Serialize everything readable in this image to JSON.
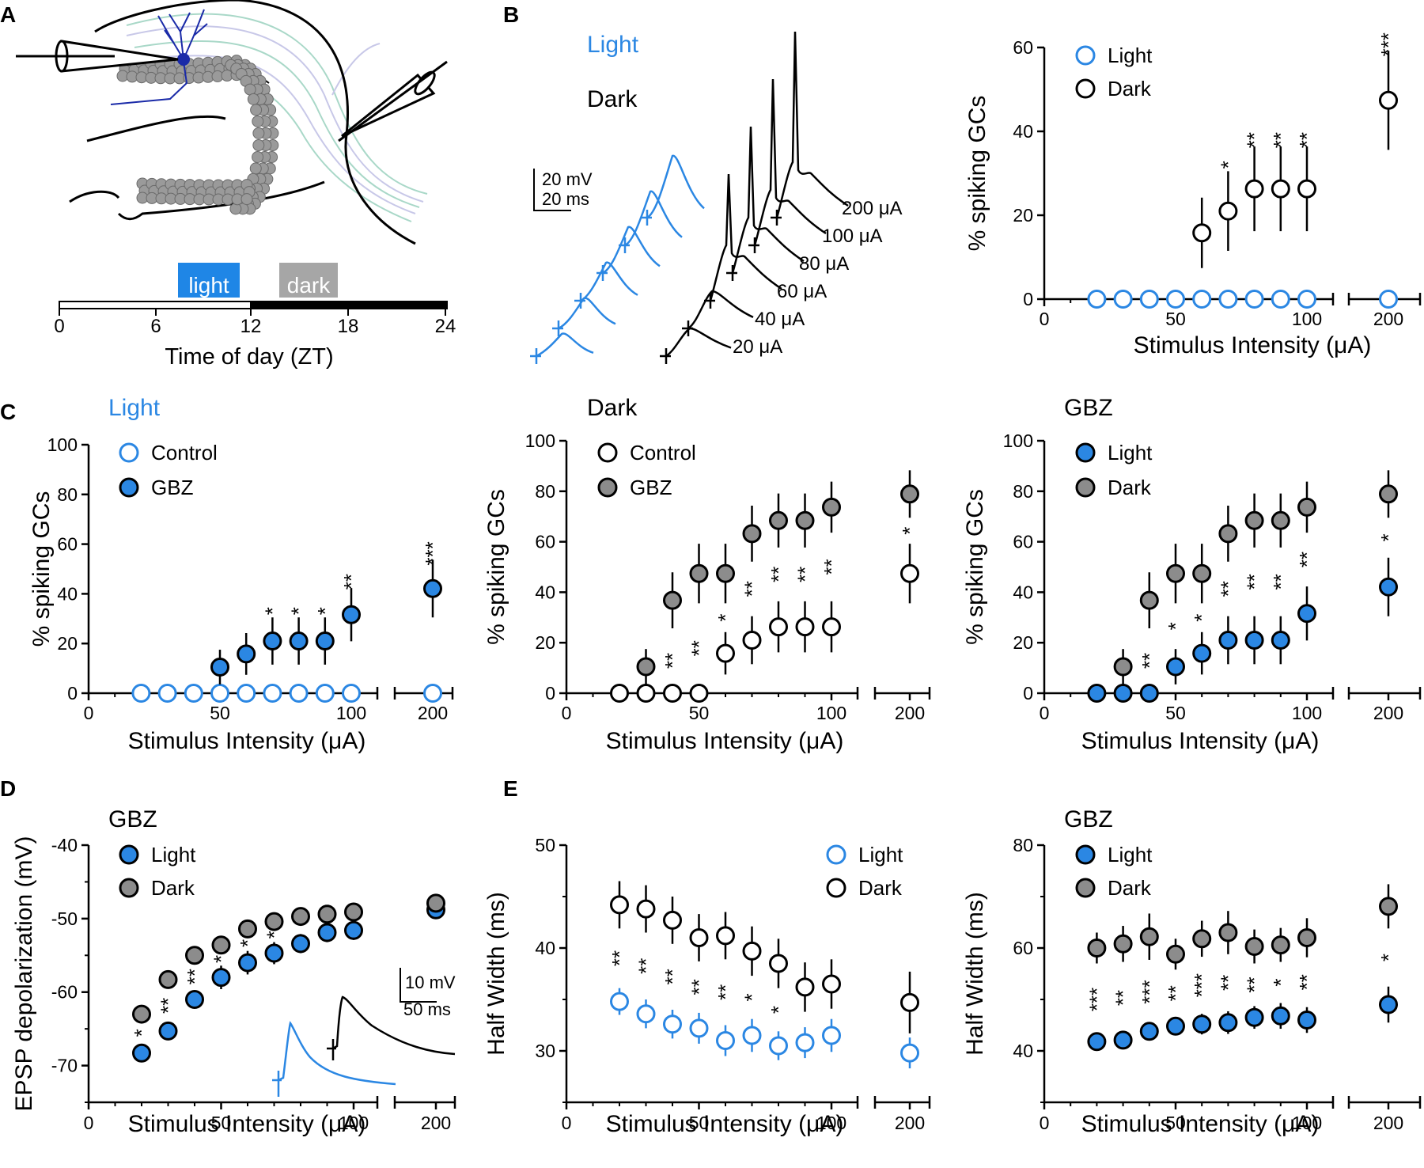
{
  "figure": {
    "panel_letters": [
      "A",
      "B",
      "C",
      "D",
      "E"
    ],
    "colors": {
      "light": "#2b87e3",
      "dark_fill": "#8c8c8c",
      "black": "#000000",
      "gray_label": "#a0a0a0"
    }
  },
  "panelA": {
    "timeline": {
      "light_label": "light",
      "dark_label": "dark",
      "ticks": [
        "0",
        "6",
        "12",
        "18",
        "24"
      ],
      "xlabel": "Time of day (ZT)"
    }
  },
  "panelB_traces": {
    "legend_light": "Light",
    "legend_dark": "Dark",
    "scale_v": "20 mV",
    "scale_t": "20 ms",
    "intensities": [
      "200 μA",
      "100 μA",
      "80 μA",
      "60 μA",
      "40 μA",
      "20 μA"
    ]
  },
  "chart_data": [
    {
      "id": "B",
      "type": "scatter",
      "title": "",
      "xlabel": "Stimulus Intensity (μA)",
      "ylabel": "% spiking GCs",
      "ylim": [
        0,
        60
      ],
      "yticks": [
        "0",
        "20",
        "40",
        "60"
      ],
      "xticks": [
        "0",
        "50",
        "100",
        "200"
      ],
      "series": [
        {
          "name": "Light",
          "style": "open-blue",
          "x": [
            20,
            30,
            40,
            50,
            60,
            70,
            80,
            90,
            100,
            200
          ],
          "y": [
            0,
            0,
            0,
            0,
            0,
            0,
            0,
            0,
            0,
            0
          ],
          "err": [
            0,
            0,
            0,
            0,
            0,
            0,
            0,
            0,
            0,
            0
          ]
        },
        {
          "name": "Dark",
          "style": "open-black",
          "x": [
            60,
            70,
            80,
            90,
            100,
            200
          ],
          "y": [
            15.8,
            21,
            26.3,
            26.3,
            26.3,
            47.4
          ],
          "err": [
            8.4,
            9.5,
            10.1,
            10.1,
            10.1,
            11.8
          ]
        }
      ],
      "annotations": [
        {
          "x": 70,
          "text": "*"
        },
        {
          "x": 80,
          "text": "**"
        },
        {
          "x": 90,
          "text": "**"
        },
        {
          "x": 100,
          "text": "**"
        },
        {
          "x": 200,
          "text": "***"
        }
      ]
    },
    {
      "id": "C1",
      "type": "scatter",
      "title": "Light",
      "xlabel": "Stimulus Intensity (μA)",
      "ylabel": "% spiking GCs",
      "ylim": [
        0,
        100
      ],
      "yticks": [
        "0",
        "20",
        "40",
        "60",
        "80",
        "100"
      ],
      "xticks": [
        "0",
        "50",
        "100",
        "200"
      ],
      "series": [
        {
          "name": "Control",
          "style": "open-blue",
          "x": [
            20,
            30,
            40,
            50,
            60,
            70,
            80,
            90,
            100,
            200
          ],
          "y": [
            0,
            0,
            0,
            0,
            0,
            0,
            0,
            0,
            0,
            0
          ],
          "err": [
            0,
            0,
            0,
            0,
            0,
            0,
            0,
            0,
            0,
            0
          ]
        },
        {
          "name": "GBZ",
          "style": "filled-blue",
          "x": [
            50,
            60,
            70,
            80,
            90,
            100,
            200
          ],
          "y": [
            10.5,
            15.8,
            21,
            21,
            21,
            31.6,
            42.1
          ],
          "err": [
            7,
            8.4,
            9.5,
            9.5,
            9.5,
            10.7,
            11.6
          ]
        }
      ],
      "annotations": [
        {
          "x": 70,
          "text": "*"
        },
        {
          "x": 80,
          "text": "*"
        },
        {
          "x": 90,
          "text": "*"
        },
        {
          "x": 100,
          "text": "**"
        },
        {
          "x": 200,
          "text": "***"
        }
      ]
    },
    {
      "id": "C2",
      "type": "scatter",
      "title": "Dark",
      "xlabel": "Stimulus Intensity (μA)",
      "ylabel": "% spiking GCs",
      "ylim": [
        0,
        100
      ],
      "yticks": [
        "0",
        "20",
        "40",
        "60",
        "80",
        "100"
      ],
      "xticks": [
        "0",
        "50",
        "100",
        "200"
      ],
      "series": [
        {
          "name": "Control",
          "style": "open-black",
          "x": [
            20,
            30,
            40,
            50,
            60,
            70,
            80,
            90,
            100,
            200
          ],
          "y": [
            0,
            0,
            0,
            0,
            15.8,
            21,
            26.3,
            26.3,
            26.3,
            47.4
          ],
          "err": [
            0,
            0,
            0,
            0,
            8.4,
            9.5,
            10.1,
            10.1,
            10.1,
            11.8
          ]
        },
        {
          "name": "GBZ",
          "style": "filled-gray",
          "x": [
            30,
            40,
            50,
            60,
            70,
            80,
            90,
            100,
            200
          ],
          "y": [
            10.5,
            36.8,
            47.4,
            47.4,
            63.2,
            68.4,
            68.4,
            73.7,
            78.9
          ],
          "err": [
            7,
            11.1,
            11.8,
            11.8,
            11.1,
            10.7,
            10.7,
            10.1,
            9.4
          ]
        }
      ],
      "annotations": [
        {
          "x": 40,
          "text": "**"
        },
        {
          "x": 50,
          "text": "**"
        },
        {
          "x": 60,
          "text": "*"
        },
        {
          "x": 70,
          "text": "**"
        },
        {
          "x": 80,
          "text": "**"
        },
        {
          "x": 90,
          "text": "**"
        },
        {
          "x": 100,
          "text": "**"
        },
        {
          "x": 200,
          "text": "*"
        }
      ]
    },
    {
      "id": "C3",
      "type": "scatter",
      "title": "GBZ",
      "xlabel": "Stimulus Intensity (μA)",
      "ylabel": "% spiking GCs",
      "ylim": [
        0,
        100
      ],
      "yticks": [
        "0",
        "20",
        "40",
        "60",
        "80",
        "100"
      ],
      "xticks": [
        "0",
        "50",
        "100",
        "200"
      ],
      "series": [
        {
          "name": "Light",
          "style": "filled-blue",
          "x": [
            20,
            30,
            40,
            50,
            60,
            70,
            80,
            90,
            100,
            200
          ],
          "y": [
            0,
            0,
            0,
            10.5,
            15.8,
            21,
            21,
            21,
            31.6,
            42.1
          ],
          "err": [
            0,
            0,
            0,
            7,
            8.4,
            9.5,
            9.5,
            9.5,
            10.7,
            11.6
          ]
        },
        {
          "name": "Dark",
          "style": "filled-gray",
          "x": [
            30,
            40,
            50,
            60,
            70,
            80,
            90,
            100,
            200
          ],
          "y": [
            10.5,
            36.8,
            47.4,
            47.4,
            63.2,
            68.4,
            68.4,
            73.7,
            78.9
          ],
          "err": [
            7,
            11.1,
            11.8,
            11.8,
            11.1,
            10.7,
            10.7,
            10.1,
            9.4
          ]
        }
      ],
      "annotations": [
        {
          "x": 40,
          "text": "**"
        },
        {
          "x": 50,
          "text": "*"
        },
        {
          "x": 60,
          "text": "*"
        },
        {
          "x": 70,
          "text": "**"
        },
        {
          "x": 80,
          "text": "**"
        },
        {
          "x": 90,
          "text": "**"
        },
        {
          "x": 100,
          "text": "**"
        },
        {
          "x": 200,
          "text": "*"
        }
      ]
    },
    {
      "id": "D",
      "type": "scatter",
      "title": "GBZ",
      "xlabel": "Stimulus Intensity (μA)",
      "ylabel": "EPSP depolarization (mV)",
      "ylim": [
        -75,
        -40
      ],
      "yticks": [
        "-70",
        "-60",
        "-50",
        "-40"
      ],
      "xticks": [
        "0",
        "50",
        "100",
        "200"
      ],
      "inset_scale_v": "10 mV",
      "inset_scale_t": "50 ms",
      "series": [
        {
          "name": "Light",
          "style": "filled-blue",
          "x": [
            20,
            30,
            40,
            50,
            60,
            70,
            80,
            90,
            100,
            200
          ],
          "y": [
            -68.3,
            -65.3,
            -61,
            -58,
            -56,
            -54.7,
            -53.4,
            -51.9,
            -51.6,
            -48.8
          ],
          "err": [
            0.9,
            0.9,
            1.1,
            1.6,
            1.6,
            1.5,
            1.3,
            1.3,
            1.3,
            1.2
          ]
        },
        {
          "name": "Dark",
          "style": "filled-gray",
          "x": [
            20,
            30,
            40,
            50,
            60,
            70,
            80,
            90,
            100,
            200
          ],
          "y": [
            -63,
            -58.3,
            -55,
            -53.6,
            -51.4,
            -50.4,
            -49.7,
            -49.4,
            -49.1,
            -47.9
          ],
          "err": [
            0.7,
            1,
            0.9,
            1,
            0.9,
            0.8,
            0.8,
            0.8,
            0.8,
            0.6
          ]
        }
      ],
      "annotations": [
        {
          "x": 20,
          "text": "*"
        },
        {
          "x": 30,
          "text": "**"
        },
        {
          "x": 40,
          "text": "**"
        },
        {
          "x": 50,
          "text": "*"
        },
        {
          "x": 60,
          "text": "*"
        },
        {
          "x": 70,
          "text": "*"
        }
      ]
    },
    {
      "id": "E1",
      "type": "scatter",
      "title": "",
      "xlabel": "Stimulus Intensity (μA)",
      "ylabel": "Half Width (ms)",
      "ylim": [
        25,
        50
      ],
      "yticks": [
        "30",
        "40",
        "50"
      ],
      "xticks": [
        "0",
        "50",
        "100",
        "200"
      ],
      "series": [
        {
          "name": "Light",
          "style": "open-blue",
          "x": [
            20,
            30,
            40,
            50,
            60,
            70,
            80,
            90,
            100,
            200
          ],
          "y": [
            34.8,
            33.6,
            32.6,
            32.2,
            31,
            31.5,
            30.5,
            30.8,
            31.5,
            29.8
          ],
          "err": [
            1.3,
            1.4,
            1.4,
            1.5,
            1.5,
            1.6,
            1.4,
            1.5,
            1.6,
            1.5
          ]
        },
        {
          "name": "Dark",
          "style": "open-black",
          "x": [
            20,
            30,
            40,
            50,
            60,
            70,
            80,
            90,
            100,
            200
          ],
          "y": [
            44.2,
            43.8,
            42.7,
            41,
            41.2,
            39.7,
            38.5,
            36.2,
            36.5,
            34.7
          ],
          "err": [
            2.3,
            2.3,
            2.3,
            2.3,
            2.3,
            2.4,
            2.4,
            2.4,
            2.4,
            3
          ]
        }
      ],
      "annotations": [
        {
          "x": 20,
          "text": "**"
        },
        {
          "x": 30,
          "text": "**"
        },
        {
          "x": 40,
          "text": "**"
        },
        {
          "x": 50,
          "text": "**"
        },
        {
          "x": 60,
          "text": "**"
        },
        {
          "x": 70,
          "text": "*"
        },
        {
          "x": 80,
          "text": "*"
        }
      ]
    },
    {
      "id": "E2",
      "type": "scatter",
      "title": "GBZ",
      "xlabel": "Stimulus Intensity (μA)",
      "ylabel": "Half Width (ms)",
      "ylim": [
        30,
        80
      ],
      "yticks": [
        "40",
        "60",
        "80"
      ],
      "xticks": [
        "0",
        "50",
        "100",
        "200"
      ],
      "series": [
        {
          "name": "Light",
          "style": "filled-blue",
          "x": [
            20,
            30,
            40,
            50,
            60,
            70,
            80,
            90,
            100,
            200
          ],
          "y": [
            41.8,
            42.1,
            43.8,
            44.8,
            45.2,
            45.5,
            46.5,
            46.8,
            46,
            49
          ],
          "err": [
            1.2,
            1.2,
            1.4,
            1.8,
            2,
            2.2,
            2.2,
            2.5,
            2.5,
            3.5
          ]
        },
        {
          "name": "Dark",
          "style": "filled-gray",
          "x": [
            20,
            30,
            40,
            50,
            60,
            70,
            80,
            90,
            100,
            200
          ],
          "y": [
            60,
            60.8,
            62.2,
            58.8,
            61.8,
            63,
            60.3,
            60.6,
            62,
            68.1
          ],
          "err": [
            3,
            3.5,
            4.5,
            3,
            3.5,
            4.2,
            3.3,
            3.3,
            3.8,
            4.3
          ]
        }
      ],
      "annotations": [
        {
          "x": 20,
          "text": "***"
        },
        {
          "x": 30,
          "text": "**"
        },
        {
          "x": 40,
          "text": "***"
        },
        {
          "x": 50,
          "text": "**"
        },
        {
          "x": 60,
          "text": "***"
        },
        {
          "x": 70,
          "text": "**"
        },
        {
          "x": 80,
          "text": "**"
        },
        {
          "x": 90,
          "text": "*"
        },
        {
          "x": 100,
          "text": "**"
        },
        {
          "x": 200,
          "text": "*"
        }
      ]
    }
  ]
}
